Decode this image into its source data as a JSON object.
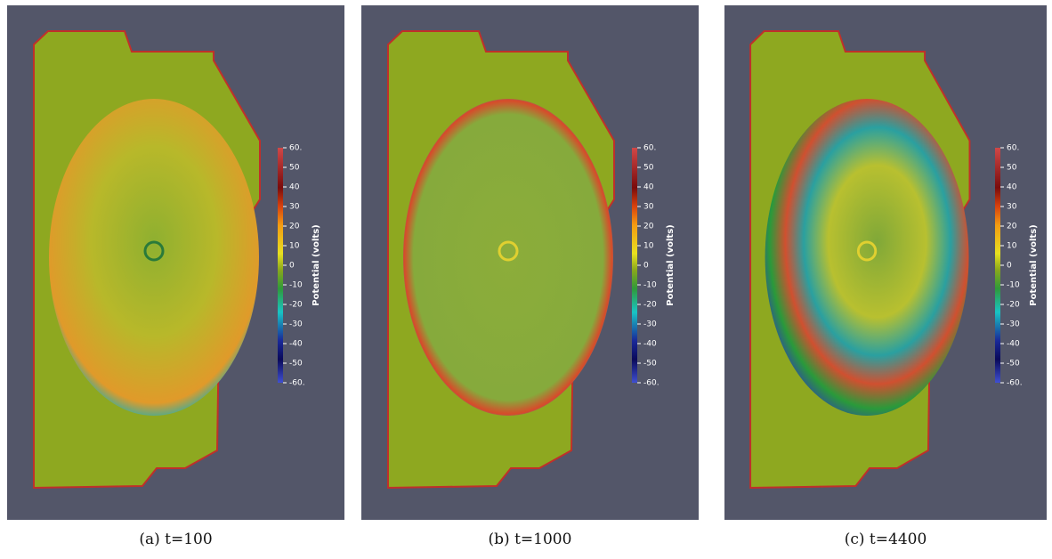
{
  "colorbar": {
    "title": "Potential (volts)",
    "ticks": [
      "60.",
      "50",
      "40",
      "30",
      "20",
      "10",
      "0",
      "-10",
      "-20",
      "-30",
      "-40",
      "-50",
      "-60."
    ]
  },
  "panels": [
    {
      "caption": "(a) t=100"
    },
    {
      "caption": "(b) t=1000"
    },
    {
      "caption": "(c) t=4400"
    }
  ]
}
